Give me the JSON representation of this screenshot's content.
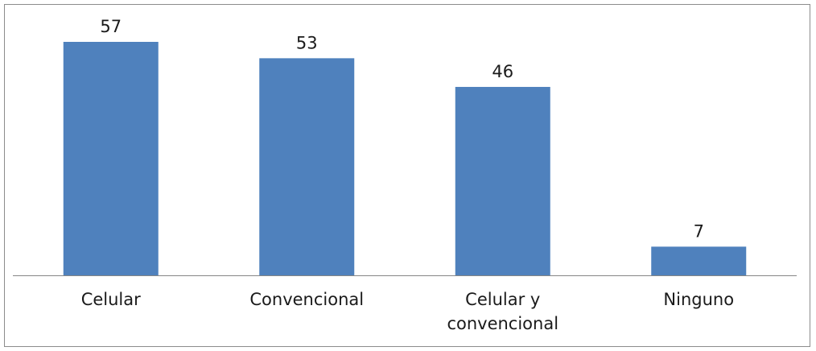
{
  "chart_data": {
    "type": "bar",
    "title": "",
    "xlabel": "",
    "ylabel": "",
    "categories": [
      "Celular",
      "Convencional",
      "Celular y convencional",
      "Ninguno"
    ],
    "category_lines": [
      [
        "Celular"
      ],
      [
        "Convencional"
      ],
      [
        "Celular y",
        "convencional"
      ],
      [
        "Ninguno"
      ]
    ],
    "values": [
      57,
      53,
      46,
      7
    ],
    "data_labels": [
      "57",
      "53",
      "46",
      "7"
    ],
    "ylim": [
      0,
      57
    ],
    "grid": false,
    "legend": "none",
    "colors": {
      "bar": "#4f81bd",
      "axis": "#868686",
      "border": "#8c8c8c",
      "text": "#1a1a1a"
    }
  }
}
